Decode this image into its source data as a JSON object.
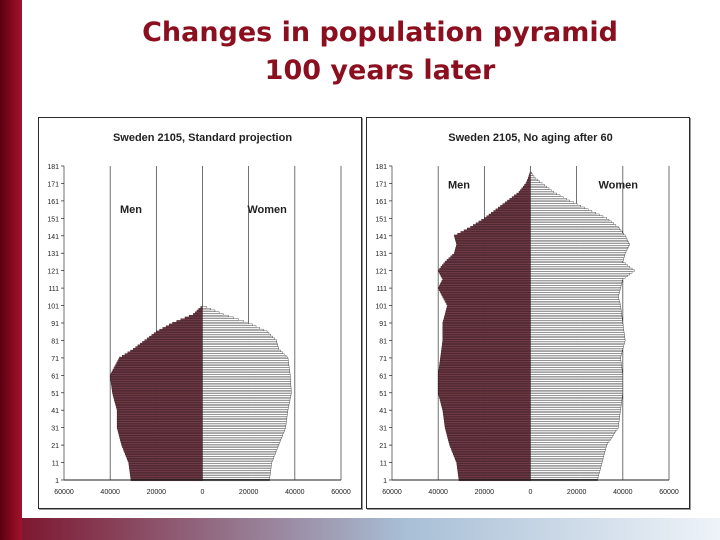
{
  "slide": {
    "title_line1": "Changes in population pyramid",
    "title_line2": "100 years later",
    "colors": {
      "title": "#8b0f1e",
      "men": "#6e3a46",
      "women": "#ffffff"
    }
  },
  "chart_data": [
    {
      "type": "bar",
      "title": "Sweden 2105, Standard projection",
      "series": [
        {
          "name": "Men",
          "side": "left"
        },
        {
          "name": "Women",
          "side": "right"
        }
      ],
      "age_axis": {
        "range": [
          1,
          181
        ],
        "ticks": [
          1,
          11,
          21,
          31,
          41,
          51,
          61,
          71,
          81,
          91,
          101,
          111,
          121,
          131,
          141,
          151,
          161,
          171,
          181
        ]
      },
      "x_axis": {
        "range": [
          -60000,
          60000
        ],
        "ticks": [
          -60000,
          -40000,
          -20000,
          0,
          20000,
          40000,
          60000
        ],
        "tick_labels": [
          "60000",
          "40000",
          "20000",
          "0",
          "20000",
          "40000",
          "60000"
        ]
      },
      "profile_ages": [
        1,
        11,
        21,
        31,
        41,
        51,
        61,
        71,
        76,
        81,
        86,
        91,
        96,
        101
      ],
      "men": [
        31000,
        32000,
        35000,
        37000,
        37000,
        39000,
        40000,
        36000,
        30000,
        25000,
        20000,
        13000,
        4000,
        0
      ],
      "women": [
        29000,
        30000,
        33000,
        36000,
        37000,
        38500,
        38000,
        37000,
        33000,
        32000,
        28000,
        20000,
        9000,
        0
      ]
    },
    {
      "type": "bar",
      "title": "Sweden 2105, No aging after 60",
      "series": [
        {
          "name": "Men",
          "side": "left"
        },
        {
          "name": "Women",
          "side": "right"
        }
      ],
      "age_axis": {
        "range": [
          1,
          181
        ],
        "ticks": [
          1,
          11,
          21,
          31,
          41,
          51,
          61,
          71,
          81,
          91,
          101,
          111,
          121,
          131,
          141,
          151,
          161,
          171,
          181
        ]
      },
      "x_axis": {
        "range": [
          -60000,
          60000
        ],
        "ticks": [
          -60000,
          -40000,
          -20000,
          0,
          20000,
          40000,
          60000
        ],
        "tick_labels": [
          "60000",
          "40000",
          "20000",
          "0",
          "20000",
          "40000",
          "60000"
        ]
      },
      "profile_ages": [
        1,
        11,
        21,
        31,
        41,
        51,
        61,
        71,
        81,
        91,
        101,
        106,
        111,
        116,
        121,
        126,
        131,
        136,
        141,
        146,
        151,
        156,
        161,
        166,
        171,
        174,
        178
      ],
      "men": [
        31000,
        32000,
        35000,
        37000,
        38000,
        40000,
        40000,
        39000,
        38000,
        38000,
        36000,
        38000,
        40000,
        38000,
        40000,
        37000,
        33000,
        32000,
        33000,
        26000,
        20000,
        15000,
        10000,
        5000,
        2000,
        1000,
        0
      ],
      "women": [
        29000,
        31000,
        33000,
        38000,
        39000,
        40000,
        40000,
        39000,
        41000,
        40000,
        39000,
        38000,
        39000,
        40000,
        45000,
        40000,
        41000,
        43000,
        41000,
        38000,
        33000,
        25000,
        17000,
        10000,
        5000,
        2000,
        0
      ]
    }
  ]
}
